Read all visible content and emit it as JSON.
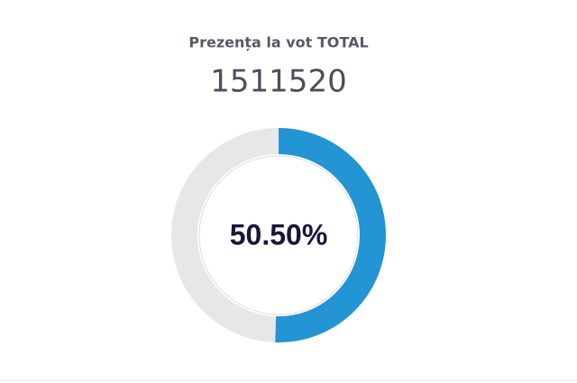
{
  "chart_data": {
    "type": "donut",
    "title": "Prezența la vot TOTAL",
    "total": "1511520",
    "values": [
      50.5
    ],
    "value_labels": [
      "50.50%"
    ],
    "max": 100,
    "color": "#2394d4",
    "track_color": "#e6e7e9"
  }
}
